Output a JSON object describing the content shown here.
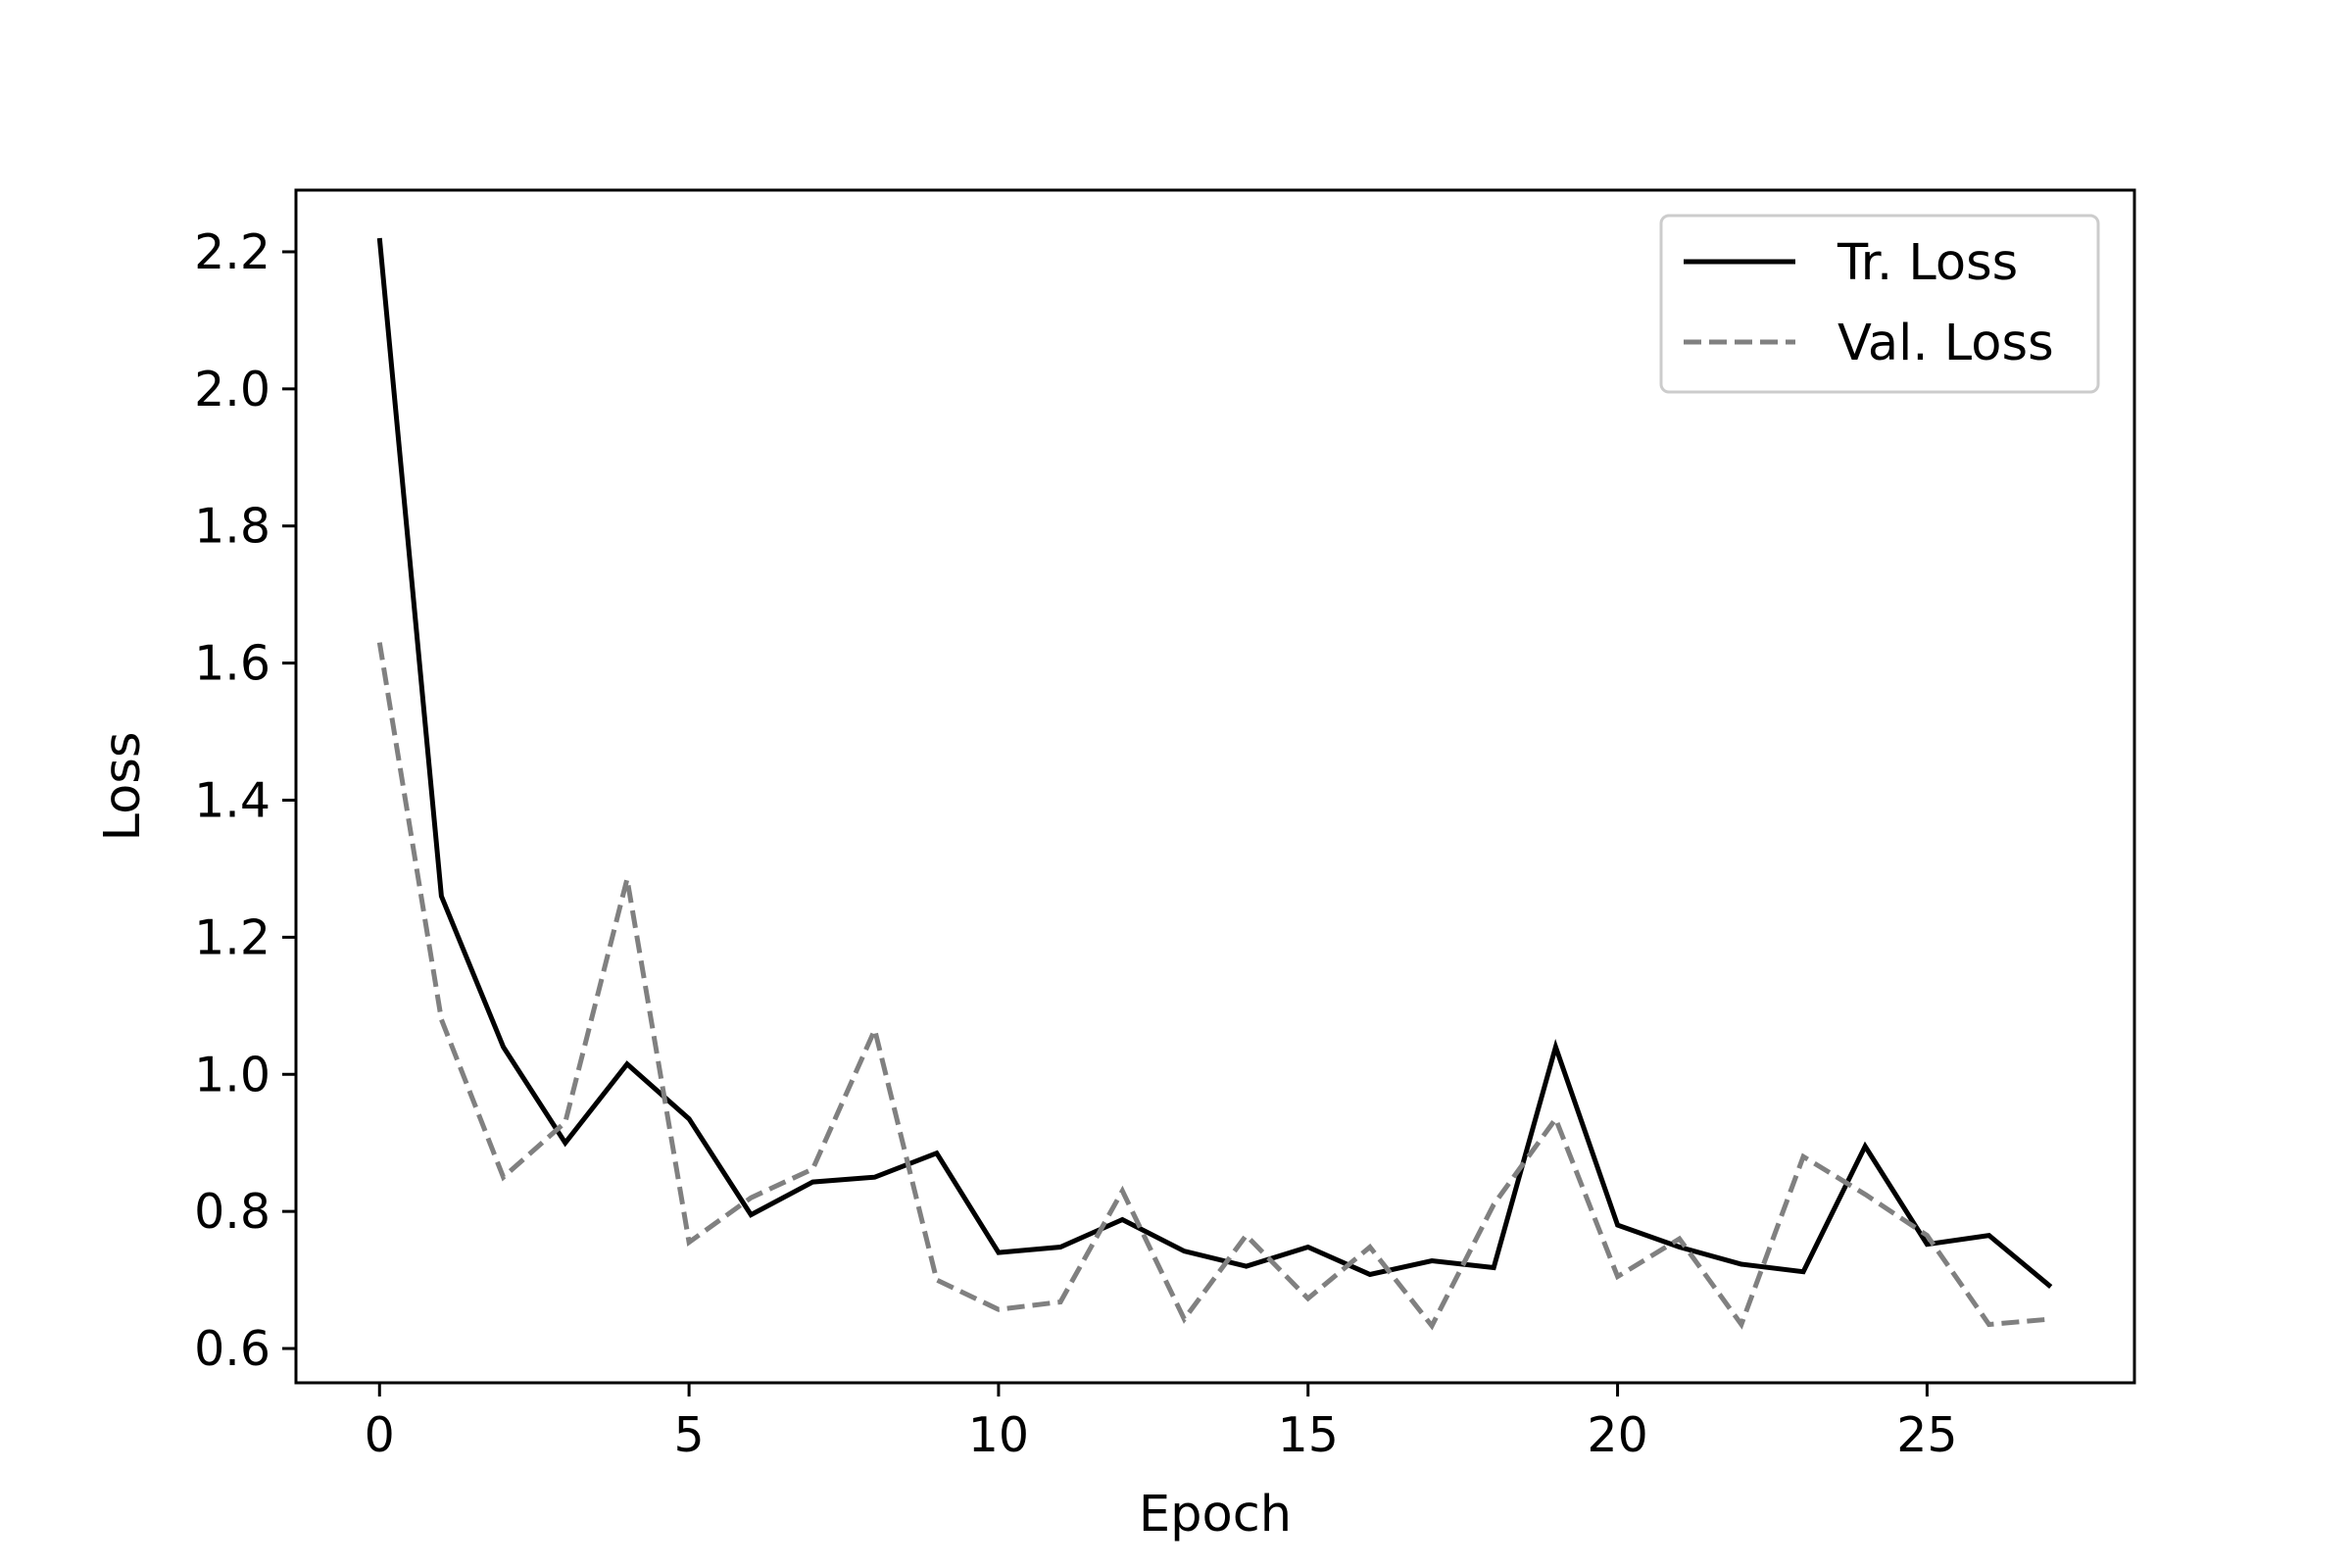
{
  "chart_data": {
    "type": "line",
    "xlabel": "Epoch",
    "ylabel": "Loss",
    "xlim": [
      -1.35,
      28.35
    ],
    "ylim": [
      0.55,
      2.29
    ],
    "xticks": [
      0,
      5,
      10,
      15,
      20,
      25
    ],
    "yticks": [
      0.6,
      0.8,
      1.0,
      1.2,
      1.4,
      1.6,
      1.8,
      2.0,
      2.2
    ],
    "ytick_labels": [
      "0.6",
      "0.8",
      "1.0",
      "1.2",
      "1.4",
      "1.6",
      "1.8",
      "2.0",
      "2.2"
    ],
    "grid": false,
    "legend": "top-right",
    "x": [
      0,
      1,
      2,
      3,
      4,
      5,
      6,
      7,
      8,
      9,
      10,
      11,
      12,
      13,
      14,
      15,
      16,
      17,
      18,
      19,
      20,
      21,
      22,
      23,
      24,
      25,
      26,
      27
    ],
    "series": [
      {
        "name": "Tr. Loss",
        "color": "#000000",
        "style": "solid",
        "values": [
          2.22,
          1.26,
          1.04,
          0.9,
          1.015,
          0.935,
          0.795,
          0.843,
          0.85,
          0.885,
          0.74,
          0.748,
          0.788,
          0.742,
          0.72,
          0.748,
          0.708,
          0.728,
          0.718,
          1.04,
          0.78,
          0.748,
          0.723,
          0.712,
          0.895,
          0.752,
          0.765,
          0.69
        ]
      },
      {
        "name": "Val. Loss",
        "color": "#808080",
        "style": "dashed",
        "values": [
          1.63,
          1.08,
          0.85,
          0.93,
          1.285,
          0.755,
          0.82,
          0.862,
          1.065,
          0.7,
          0.657,
          0.668,
          0.83,
          0.643,
          0.765,
          0.673,
          0.748,
          0.633,
          0.81,
          0.935,
          0.705,
          0.76,
          0.635,
          0.88,
          0.825,
          0.765,
          0.635,
          0.643
        ]
      }
    ]
  }
}
